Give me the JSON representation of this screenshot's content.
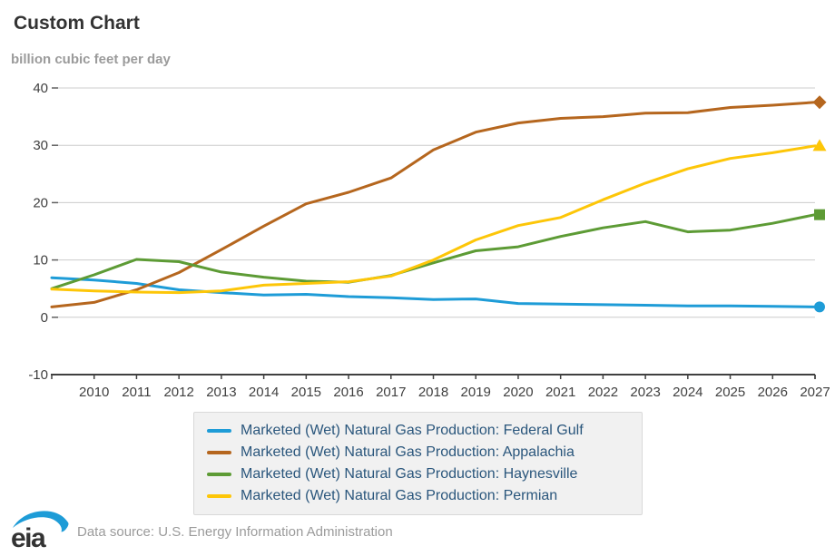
{
  "header": {
    "title": "Custom Chart",
    "unit_label": "billion cubic feet per day"
  },
  "chart_data": {
    "type": "line",
    "title": "Custom Chart",
    "ylabel": "billion cubic feet per day",
    "xlabel": "",
    "x": [
      2009,
      2010,
      2011,
      2012,
      2013,
      2014,
      2015,
      2016,
      2017,
      2018,
      2019,
      2020,
      2021,
      2022,
      2023,
      2024,
      2025,
      2026,
      2027
    ],
    "x_ticks": [
      2010,
      2011,
      2012,
      2013,
      2014,
      2015,
      2016,
      2017,
      2018,
      2019,
      2020,
      2021,
      2022,
      2023,
      2024,
      2025,
      2026,
      2027
    ],
    "xlim": [
      2009,
      2027
    ],
    "ylim": [
      -10,
      40
    ],
    "y_ticks": [
      40,
      30,
      20,
      10,
      0,
      -10
    ],
    "grid": "horizontal-only",
    "legend_position": "bottom",
    "series": [
      {
        "name": "Marketed (Wet) Natural Gas Production: Federal Gulf",
        "color": "#1e9cd7",
        "marker": "circle",
        "values": [
          6.9,
          6.5,
          5.9,
          4.8,
          4.3,
          3.9,
          4.0,
          3.6,
          3.4,
          3.1,
          3.2,
          2.4,
          2.3,
          2.2,
          2.1,
          2.0,
          2.0,
          1.9,
          1.8
        ]
      },
      {
        "name": "Marketed (Wet) Natural Gas Production: Appalachia",
        "color": "#b5661e",
        "marker": "diamond",
        "values": [
          1.8,
          2.6,
          4.8,
          7.8,
          11.8,
          15.9,
          19.8,
          21.8,
          24.3,
          29.2,
          32.3,
          33.9,
          34.7,
          35.0,
          35.6,
          35.7,
          36.6,
          37.0,
          37.5
        ]
      },
      {
        "name": "Marketed (Wet) Natural Gas Production: Haynesville",
        "color": "#5d9b35",
        "marker": "square",
        "values": [
          5.0,
          7.4,
          10.1,
          9.7,
          7.9,
          7.0,
          6.3,
          6.1,
          7.3,
          9.5,
          11.6,
          12.3,
          14.1,
          15.6,
          16.7,
          14.9,
          15.2,
          16.4,
          17.9
        ]
      },
      {
        "name": "Marketed (Wet) Natural Gas Production: Permian",
        "color": "#fdc608",
        "marker": "triangle",
        "values": [
          4.9,
          4.6,
          4.4,
          4.3,
          4.6,
          5.6,
          5.9,
          6.2,
          7.2,
          10.0,
          13.5,
          16.0,
          17.4,
          20.5,
          23.4,
          25.9,
          27.7,
          28.7,
          29.9
        ]
      }
    ]
  },
  "footer": {
    "logo_text": "eia",
    "source": "Data source: U.S. Energy Information Administration"
  },
  "colors": {
    "title_text": "#333333",
    "subtitle_text": "#9b9b9b",
    "axis_text": "#404040",
    "axis_line": "#404040",
    "gridline": "#cccccc",
    "legend_text": "#2a567c",
    "legend_background": "#f1f1f1",
    "legend_border": "#d9d9d9",
    "logo_blue": "#1e9cd7",
    "source_text": "#9b9b9b"
  }
}
